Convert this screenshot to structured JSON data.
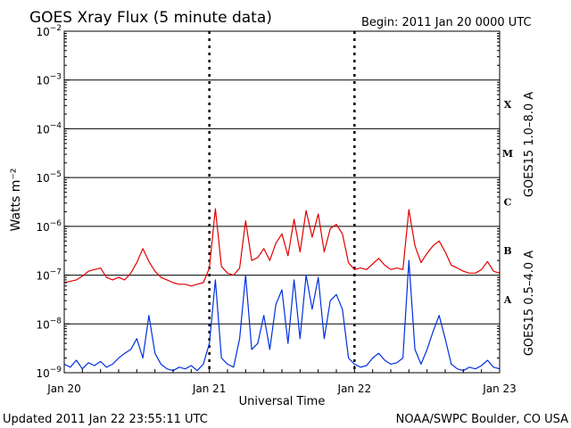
{
  "header": {
    "title": "GOES Xray Flux (5 minute data)",
    "begin": "Begin:  2011 Jan 20 0000 UTC"
  },
  "footer": {
    "updated": "Updated 2011 Jan 22 23:55:11 UTC",
    "credit": "NOAA/SWPC Boulder, CO USA"
  },
  "chart_data": {
    "type": "line",
    "title": "GOES Xray Flux (5 minute data)",
    "xlabel": "Universal Time",
    "ylabel": "Watts m⁻²",
    "yscale": "log",
    "ylim": [
      1e-09,
      0.01
    ],
    "xlim": [
      "2011-01-20T00:00",
      "2011-01-23T00:00"
    ],
    "x_ticks": [
      "Jan 20",
      "Jan 21",
      "Jan 22",
      "Jan 23"
    ],
    "y_ticks": [
      {
        "base": "10",
        "exp": "−9",
        "value": 1e-09
      },
      {
        "base": "10",
        "exp": "−8",
        "value": 1e-08
      },
      {
        "base": "10",
        "exp": "−7",
        "value": 1e-07
      },
      {
        "base": "10",
        "exp": "−6",
        "value": 1e-06
      },
      {
        "base": "10",
        "exp": "−5",
        "value": 1e-05
      },
      {
        "base": "10",
        "exp": "−4",
        "value": 0.0001
      },
      {
        "base": "10",
        "exp": "−3",
        "value": 0.001
      },
      {
        "base": "10",
        "exp": "−2",
        "value": 0.01
      }
    ],
    "flare_classes": [
      {
        "label": "A",
        "value": 3.16e-08
      },
      {
        "label": "B",
        "value": 3.16e-07
      },
      {
        "label": "C",
        "value": 3.16e-06
      },
      {
        "label": "M",
        "value": 3.16e-05
      },
      {
        "label": "X",
        "value": 0.000316
      }
    ],
    "grid": true,
    "series": [
      {
        "name": "GOES15 1.0–8.0 A",
        "color": "#e00000",
        "points": [
          [
            "2011-01-20T00:00",
            7e-08
          ],
          [
            "2011-01-20T01:00",
            7.5e-08
          ],
          [
            "2011-01-20T02:00",
            8e-08
          ],
          [
            "2011-01-20T03:00",
            9.5e-08
          ],
          [
            "2011-01-20T04:00",
            1.2e-07
          ],
          [
            "2011-01-20T05:00",
            1.3e-07
          ],
          [
            "2011-01-20T06:00",
            1.4e-07
          ],
          [
            "2011-01-20T07:00",
            9e-08
          ],
          [
            "2011-01-20T08:00",
            8e-08
          ],
          [
            "2011-01-20T09:00",
            9e-08
          ],
          [
            "2011-01-20T10:00",
            8e-08
          ],
          [
            "2011-01-20T11:00",
            1.1e-07
          ],
          [
            "2011-01-20T12:00",
            1.8e-07
          ],
          [
            "2011-01-20T13:00",
            3.5e-07
          ],
          [
            "2011-01-20T14:00",
            1.9e-07
          ],
          [
            "2011-01-20T15:00",
            1.2e-07
          ],
          [
            "2011-01-20T16:00",
            9e-08
          ],
          [
            "2011-01-20T17:00",
            8e-08
          ],
          [
            "2011-01-20T18:00",
            7e-08
          ],
          [
            "2011-01-20T19:00",
            6.5e-08
          ],
          [
            "2011-01-20T20:00",
            6.5e-08
          ],
          [
            "2011-01-20T21:00",
            6e-08
          ],
          [
            "2011-01-20T22:00",
            6.5e-08
          ],
          [
            "2011-01-20T23:00",
            7e-08
          ],
          [
            "2011-01-21T00:00",
            1.4e-07
          ],
          [
            "2011-01-21T01:00",
            2.3e-06
          ],
          [
            "2011-01-21T02:00",
            1.5e-07
          ],
          [
            "2011-01-21T03:00",
            1.1e-07
          ],
          [
            "2011-01-21T04:00",
            1e-07
          ],
          [
            "2011-01-21T05:00",
            1.4e-07
          ],
          [
            "2011-01-21T06:00",
            1.3e-06
          ],
          [
            "2011-01-21T07:00",
            2e-07
          ],
          [
            "2011-01-21T08:00",
            2.3e-07
          ],
          [
            "2011-01-21T09:00",
            3.5e-07
          ],
          [
            "2011-01-21T10:00",
            2e-07
          ],
          [
            "2011-01-21T11:00",
            4.5e-07
          ],
          [
            "2011-01-21T12:00",
            7e-07
          ],
          [
            "2011-01-21T13:00",
            2.5e-07
          ],
          [
            "2011-01-21T14:00",
            1.4e-06
          ],
          [
            "2011-01-21T15:00",
            3e-07
          ],
          [
            "2011-01-21T16:00",
            2.1e-06
          ],
          [
            "2011-01-21T17:00",
            6e-07
          ],
          [
            "2011-01-21T18:00",
            1.8e-06
          ],
          [
            "2011-01-21T19:00",
            3e-07
          ],
          [
            "2011-01-21T20:00",
            9e-07
          ],
          [
            "2011-01-21T21:00",
            1.1e-06
          ],
          [
            "2011-01-21T22:00",
            7e-07
          ],
          [
            "2011-01-21T23:00",
            1.8e-07
          ],
          [
            "2011-01-22T00:00",
            1.3e-07
          ],
          [
            "2011-01-22T01:00",
            1.4e-07
          ],
          [
            "2011-01-22T02:00",
            1.3e-07
          ],
          [
            "2011-01-22T03:00",
            1.7e-07
          ],
          [
            "2011-01-22T04:00",
            2.2e-07
          ],
          [
            "2011-01-22T05:00",
            1.6e-07
          ],
          [
            "2011-01-22T06:00",
            1.3e-07
          ],
          [
            "2011-01-22T07:00",
            1.4e-07
          ],
          [
            "2011-01-22T08:00",
            1.3e-07
          ],
          [
            "2011-01-22T09:00",
            2.2e-06
          ],
          [
            "2011-01-22T10:00",
            4e-07
          ],
          [
            "2011-01-22T11:00",
            1.8e-07
          ],
          [
            "2011-01-22T12:00",
            2.8e-07
          ],
          [
            "2011-01-22T13:00",
            4e-07
          ],
          [
            "2011-01-22T14:00",
            5e-07
          ],
          [
            "2011-01-22T15:00",
            3e-07
          ],
          [
            "2011-01-22T16:00",
            1.6e-07
          ],
          [
            "2011-01-22T17:00",
            1.4e-07
          ],
          [
            "2011-01-22T18:00",
            1.2e-07
          ],
          [
            "2011-01-22T19:00",
            1.1e-07
          ],
          [
            "2011-01-22T20:00",
            1.1e-07
          ],
          [
            "2011-01-22T21:00",
            1.3e-07
          ],
          [
            "2011-01-22T22:00",
            1.9e-07
          ],
          [
            "2011-01-22T23:00",
            1.2e-07
          ],
          [
            "2011-01-23T00:00",
            1.1e-07
          ]
        ]
      },
      {
        "name": "GOES15 0.5–4.0 A",
        "color": "#0030e0",
        "points": [
          [
            "2011-01-20T00:00",
            1.5e-09
          ],
          [
            "2011-01-20T01:00",
            1.3e-09
          ],
          [
            "2011-01-20T02:00",
            1.8e-09
          ],
          [
            "2011-01-20T03:00",
            1.2e-09
          ],
          [
            "2011-01-20T04:00",
            1.6e-09
          ],
          [
            "2011-01-20T05:00",
            1.4e-09
          ],
          [
            "2011-01-20T06:00",
            1.7e-09
          ],
          [
            "2011-01-20T07:00",
            1.3e-09
          ],
          [
            "2011-01-20T08:00",
            1.5e-09
          ],
          [
            "2011-01-20T09:00",
            2e-09
          ],
          [
            "2011-01-20T10:00",
            2.5e-09
          ],
          [
            "2011-01-20T11:00",
            3e-09
          ],
          [
            "2011-01-20T12:00",
            5e-09
          ],
          [
            "2011-01-20T13:00",
            2e-09
          ],
          [
            "2011-01-20T14:00",
            1.5e-08
          ],
          [
            "2011-01-20T15:00",
            2.5e-09
          ],
          [
            "2011-01-20T16:00",
            1.5e-09
          ],
          [
            "2011-01-20T17:00",
            1.2e-09
          ],
          [
            "2011-01-20T18:00",
            1.1e-09
          ],
          [
            "2011-01-20T19:00",
            1.3e-09
          ],
          [
            "2011-01-20T20:00",
            1.2e-09
          ],
          [
            "2011-01-20T21:00",
            1.4e-09
          ],
          [
            "2011-01-20T22:00",
            1.1e-09
          ],
          [
            "2011-01-20T23:00",
            1.5e-09
          ],
          [
            "2011-01-21T00:00",
            4e-09
          ],
          [
            "2011-01-21T01:00",
            8e-08
          ],
          [
            "2011-01-21T02:00",
            2e-09
          ],
          [
            "2011-01-21T03:00",
            1.5e-09
          ],
          [
            "2011-01-21T04:00",
            1.3e-09
          ],
          [
            "2011-01-21T05:00",
            5e-09
          ],
          [
            "2011-01-21T06:00",
            1e-07
          ],
          [
            "2011-01-21T07:00",
            3e-09
          ],
          [
            "2011-01-21T08:00",
            4e-09
          ],
          [
            "2011-01-21T09:00",
            1.5e-08
          ],
          [
            "2011-01-21T10:00",
            3e-09
          ],
          [
            "2011-01-21T11:00",
            2.5e-08
          ],
          [
            "2011-01-21T12:00",
            5e-08
          ],
          [
            "2011-01-21T13:00",
            4e-09
          ],
          [
            "2011-01-21T14:00",
            8e-08
          ],
          [
            "2011-01-21T15:00",
            5e-09
          ],
          [
            "2011-01-21T16:00",
            1e-07
          ],
          [
            "2011-01-21T17:00",
            2e-08
          ],
          [
            "2011-01-21T18:00",
            9e-08
          ],
          [
            "2011-01-21T19:00",
            5e-09
          ],
          [
            "2011-01-21T20:00",
            3e-08
          ],
          [
            "2011-01-21T21:00",
            4e-08
          ],
          [
            "2011-01-21T22:00",
            2e-08
          ],
          [
            "2011-01-21T23:00",
            2e-09
          ],
          [
            "2011-01-22T00:00",
            1.5e-09
          ],
          [
            "2011-01-22T01:00",
            1.3e-09
          ],
          [
            "2011-01-22T02:00",
            1.4e-09
          ],
          [
            "2011-01-22T03:00",
            2e-09
          ],
          [
            "2011-01-22T04:00",
            2.5e-09
          ],
          [
            "2011-01-22T05:00",
            1.8e-09
          ],
          [
            "2011-01-22T06:00",
            1.5e-09
          ],
          [
            "2011-01-22T07:00",
            1.6e-09
          ],
          [
            "2011-01-22T08:00",
            2e-09
          ],
          [
            "2011-01-22T09:00",
            2e-07
          ],
          [
            "2011-01-22T10:00",
            3e-09
          ],
          [
            "2011-01-22T11:00",
            1.5e-09
          ],
          [
            "2011-01-22T12:00",
            3e-09
          ],
          [
            "2011-01-22T13:00",
            7e-09
          ],
          [
            "2011-01-22T14:00",
            1.5e-08
          ],
          [
            "2011-01-22T15:00",
            5e-09
          ],
          [
            "2011-01-22T16:00",
            1.5e-09
          ],
          [
            "2011-01-22T17:00",
            1.2e-09
          ],
          [
            "2011-01-22T18:00",
            1.1e-09
          ],
          [
            "2011-01-22T19:00",
            1.3e-09
          ],
          [
            "2011-01-22T20:00",
            1.2e-09
          ],
          [
            "2011-01-22T21:00",
            1.4e-09
          ],
          [
            "2011-01-22T22:00",
            1.8e-09
          ],
          [
            "2011-01-22T23:00",
            1.3e-09
          ],
          [
            "2011-01-23T00:00",
            1.2e-09
          ]
        ]
      }
    ]
  }
}
